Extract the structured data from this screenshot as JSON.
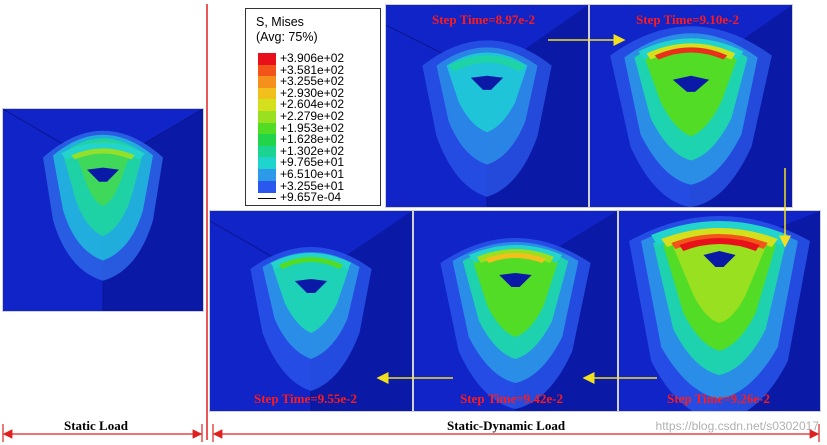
{
  "legend": {
    "title_line1": "S, Mises",
    "title_line2": "(Avg: 75%)",
    "entries": [
      {
        "label": "+3.906e+02",
        "color": "#e8101a"
      },
      {
        "label": "+3.581e+02",
        "color": "#f2541a"
      },
      {
        "label": "+3.255e+02",
        "color": "#f5901c"
      },
      {
        "label": "+2.930e+02",
        "color": "#f2c01c"
      },
      {
        "label": "+2.604e+02",
        "color": "#d4e01c"
      },
      {
        "label": "+2.279e+02",
        "color": "#98e020"
      },
      {
        "label": "+1.953e+02",
        "color": "#52dc26"
      },
      {
        "label": "+1.628e+02",
        "color": "#22d44a"
      },
      {
        "label": "+1.302e+02",
        "color": "#1cd492"
      },
      {
        "label": "+9.765e+01",
        "color": "#1ed4cc"
      },
      {
        "label": "+6.510e+01",
        "color": "#2c9ae8"
      },
      {
        "label": "+3.255e+01",
        "color": "#2a58ee"
      },
      {
        "label": "+9.657e-04",
        "color": "#1e24e0"
      }
    ]
  },
  "panels": [
    {
      "id": "static",
      "step_label": ""
    },
    {
      "id": "t1",
      "step_label": "Step Time=8.97e-2"
    },
    {
      "id": "t2",
      "step_label": "Step Time=9.10e-2"
    },
    {
      "id": "t3",
      "step_label": "Step Time=9.26e-2"
    },
    {
      "id": "t4",
      "step_label": "Step Time=9.42e-2"
    },
    {
      "id": "t5",
      "step_label": "Step Time=9.55e-2"
    }
  ],
  "captions": {
    "static": "Static Load",
    "dynamic": "Static-Dynamic Load"
  },
  "watermark": "https://blog.csdn.net/s0302017",
  "colors": {
    "background_blue": "#0f22c4",
    "cube_right_face": "#0b1aa6",
    "accent_red": "#e02020",
    "arrow_yellow": "#f2e020"
  }
}
